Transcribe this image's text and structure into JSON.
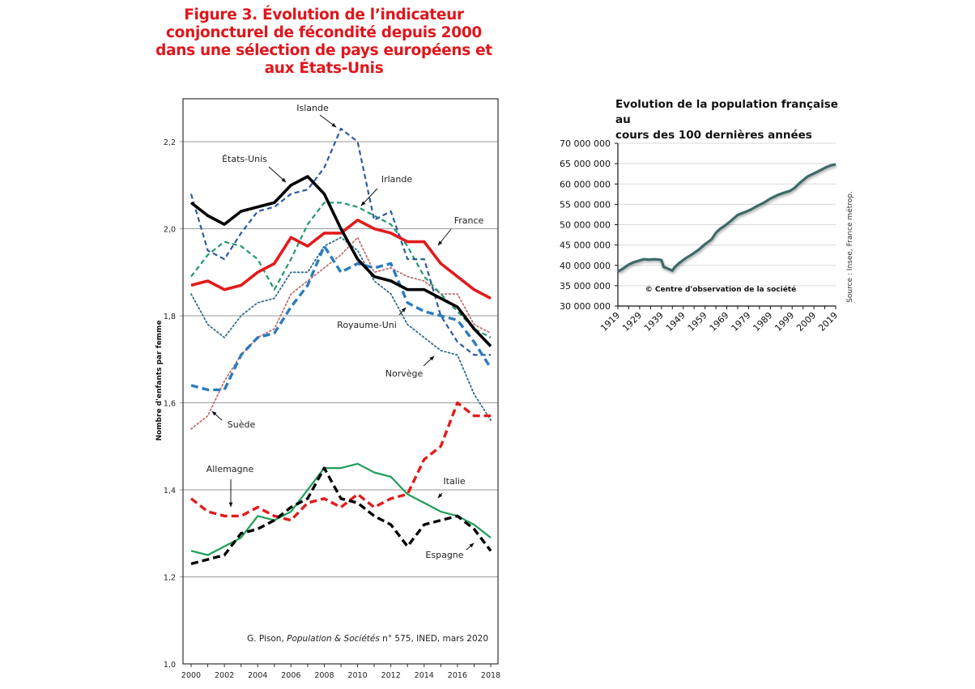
{
  "chart_data": [
    {
      "type": "line",
      "title": "Figure 3. Évolution de l’indicateur conjoncturel de fécondité depuis 2000 dans une sélection de pays européens et aux États-Unis",
      "xlabel": "",
      "ylabel": "Nombre d'enfants par femme",
      "x": [
        2000,
        2001,
        2002,
        2003,
        2004,
        2005,
        2006,
        2007,
        2008,
        2009,
        2010,
        2011,
        2012,
        2013,
        2014,
        2015,
        2016,
        2017,
        2018
      ],
      "x_ticks": [
        "2000",
        "2002",
        "2004",
        "2006",
        "2008",
        "2010",
        "2012",
        "2014",
        "2016",
        "2018"
      ],
      "y_ticks": [
        "1,0",
        "1,2",
        "1,4",
        "1,6",
        "1,8",
        "2,0",
        "2,2"
      ],
      "ylim": [
        1.0,
        2.3
      ],
      "grid": true,
      "source": "G. Pison, Population & Sociétés n° 575, INED, mars 2020",
      "source_parts": {
        "author": "G. Pison, ",
        "journal": "Population & Sociétés",
        "rest": " n° 575, INED, mars 2020"
      },
      "series": [
        {
          "name": "États-Unis",
          "color": "#000000",
          "style": "solid-thick",
          "values": [
            2.06,
            2.03,
            2.01,
            2.04,
            2.05,
            2.06,
            2.1,
            2.12,
            2.08,
            2.0,
            1.93,
            1.89,
            1.88,
            1.86,
            1.86,
            1.84,
            1.82,
            1.77,
            1.73
          ]
        },
        {
          "name": "France",
          "color": "#e31a1c",
          "style": "solid-thick",
          "values": [
            1.87,
            1.88,
            1.86,
            1.87,
            1.9,
            1.92,
            1.98,
            1.96,
            1.99,
            1.99,
            2.02,
            2.0,
            1.99,
            1.97,
            1.97,
            1.92,
            1.89,
            1.86,
            1.84
          ]
        },
        {
          "name": "Islande",
          "color": "#2c5aa0",
          "style": "dashed",
          "values": [
            2.08,
            1.95,
            1.93,
            1.99,
            2.04,
            2.05,
            2.08,
            2.09,
            2.14,
            2.23,
            2.2,
            2.02,
            2.04,
            1.93,
            1.93,
            1.8,
            1.74,
            1.71,
            1.71
          ]
        },
        {
          "name": "Irlande",
          "color": "#22996b",
          "style": "dashed",
          "values": [
            1.89,
            1.94,
            1.97,
            1.96,
            1.93,
            1.86,
            1.93,
            2.01,
            2.06,
            2.06,
            2.05,
            2.03,
            2.01,
            1.96,
            1.89,
            1.85,
            1.81,
            1.77,
            1.75
          ]
        },
        {
          "name": "Royaume-Uni",
          "color": "#2b7bbf",
          "style": "dashed-thick",
          "values": [
            1.64,
            1.63,
            1.63,
            1.71,
            1.75,
            1.76,
            1.82,
            1.87,
            1.96,
            1.9,
            1.92,
            1.91,
            1.92,
            1.83,
            1.81,
            1.8,
            1.79,
            1.74,
            1.68
          ]
        },
        {
          "name": "Norvège",
          "color": "#2e6e8e",
          "style": "dotted",
          "values": [
            1.85,
            1.78,
            1.75,
            1.8,
            1.83,
            1.84,
            1.9,
            1.9,
            1.96,
            1.98,
            1.95,
            1.88,
            1.85,
            1.78,
            1.75,
            1.72,
            1.71,
            1.62,
            1.56
          ]
        },
        {
          "name": "Suède",
          "color": "#c07070",
          "style": "dotted",
          "values": [
            1.54,
            1.57,
            1.65,
            1.71,
            1.75,
            1.77,
            1.85,
            1.88,
            1.91,
            1.94,
            1.98,
            1.9,
            1.91,
            1.89,
            1.88,
            1.85,
            1.85,
            1.78,
            1.76
          ]
        },
        {
          "name": "Allemagne",
          "color": "#e31a1c",
          "style": "dashed-thick",
          "values": [
            1.38,
            1.35,
            1.34,
            1.34,
            1.36,
            1.34,
            1.33,
            1.37,
            1.38,
            1.36,
            1.39,
            1.36,
            1.38,
            1.39,
            1.47,
            1.5,
            1.6,
            1.57,
            1.57
          ]
        },
        {
          "name": "Italie",
          "color": "#1e9e58",
          "style": "solid",
          "values": [
            1.26,
            1.25,
            1.27,
            1.29,
            1.34,
            1.33,
            1.35,
            1.4,
            1.45,
            1.45,
            1.46,
            1.44,
            1.43,
            1.39,
            1.37,
            1.35,
            1.34,
            1.32,
            1.29
          ]
        },
        {
          "name": "Espagne",
          "color": "#000000",
          "style": "dashed-thick",
          "values": [
            1.23,
            1.24,
            1.25,
            1.3,
            1.31,
            1.33,
            1.36,
            1.38,
            1.45,
            1.38,
            1.37,
            1.34,
            1.32,
            1.27,
            1.32,
            1.33,
            1.34,
            1.31,
            1.26
          ]
        }
      ],
      "annotations": [
        {
          "text": "Islande",
          "series": "Islande"
        },
        {
          "text": "États-Unis",
          "series": "États-Unis"
        },
        {
          "text": "Irlande",
          "series": "Irlande"
        },
        {
          "text": "France",
          "series": "France"
        },
        {
          "text": "Royaume-Uni",
          "series": "Royaume-Uni"
        },
        {
          "text": "Norvège",
          "series": "Norvège"
        },
        {
          "text": "Suède",
          "series": "Suède"
        },
        {
          "text": "Allemagne",
          "series": "Allemagne"
        },
        {
          "text": "Italie",
          "series": "Italie"
        },
        {
          "text": "Espagne",
          "series": "Espagne"
        }
      ]
    },
    {
      "type": "line",
      "title": "Evolution de la population française au cours des 100 dernières années",
      "title_lines": [
        "Evolution de la population française au",
        "cours des 100 dernières années"
      ],
      "xlabel": "",
      "ylabel": "",
      "ylim": [
        30000000,
        70000000
      ],
      "y_ticks": [
        "30 000 000",
        "35 000 000",
        "40 000 000",
        "45 000 000",
        "50 000 000",
        "55 000 000",
        "60 000 000",
        "65 000 000",
        "70 000 000"
      ],
      "x_ticks": [
        "1919",
        "1929",
        "1939",
        "1949",
        "1959",
        "1969",
        "1979",
        "1989",
        "1999",
        "2009",
        "2019"
      ],
      "xlim": [
        1919,
        2019
      ],
      "grid": true,
      "color": "#3d6b68",
      "watermark": "© Centre d'observation de  la société",
      "source": "Source : Insee, France métrop.",
      "series": [
        {
          "name": "Population",
          "x": [
            1919,
            1921,
            1924,
            1926,
            1929,
            1931,
            1933,
            1936,
            1938,
            1939,
            1940,
            1942,
            1944,
            1945,
            1947,
            1950,
            1953,
            1956,
            1959,
            1962,
            1964,
            1966,
            1968,
            1971,
            1974,
            1977,
            1980,
            1983,
            1986,
            1989,
            1992,
            1995,
            1998,
            2000,
            2003,
            2006,
            2009,
            2012,
            2015,
            2017,
            2019
          ],
          "values": [
            38500000,
            39100000,
            40200000,
            40700000,
            41200000,
            41500000,
            41400000,
            41500000,
            41400000,
            41300000,
            39600000,
            39200000,
            38700000,
            39500000,
            40500000,
            41700000,
            42700000,
            43800000,
            45200000,
            46400000,
            48000000,
            49000000,
            49700000,
            51000000,
            52400000,
            53000000,
            53700000,
            54600000,
            55400000,
            56400000,
            57200000,
            57800000,
            58300000,
            59000000,
            60500000,
            61800000,
            62600000,
            63400000,
            64200000,
            64600000,
            64800000
          ]
        }
      ]
    }
  ]
}
